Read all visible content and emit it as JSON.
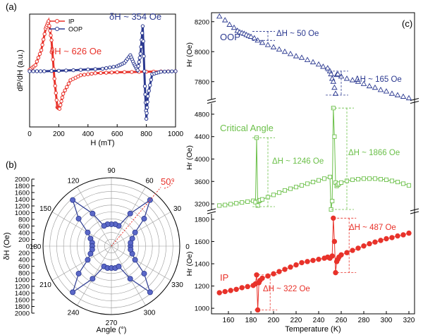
{
  "colors": {
    "ip": "#e8322a",
    "oop": "#2b3990",
    "crit": "#6cc04a",
    "axis": "#000000",
    "polar_grid": "#9a9a9a"
  },
  "chart_data": [
    {
      "panel": "(a)",
      "type": "line",
      "xlabel": "H (mT)",
      "ylabel": "dP/dH (a.u.)",
      "xlim": [
        0,
        1000
      ],
      "ylim": [
        -1,
        1
      ],
      "xticks": [
        "0",
        "200",
        "400",
        "600",
        "800",
        "1000"
      ],
      "legend": {
        "position": "top-left",
        "entries": [
          "IP",
          "OOP"
        ]
      },
      "annotations": [
        "δH ~ 626 Oe",
        "δH ~ 354 Oe"
      ],
      "series": [
        {
          "name": "IP",
          "x": [
            0,
            40,
            80,
            110,
            130,
            150,
            170,
            190,
            205,
            230,
            280,
            350,
            450,
            600,
            800,
            1000
          ],
          "y": [
            0.03,
            0.12,
            0.42,
            0.85,
            1.0,
            0.62,
            -0.15,
            -0.72,
            -0.75,
            -0.45,
            -0.18,
            -0.08,
            -0.04,
            -0.02,
            -0.01,
            0.0
          ]
        },
        {
          "name": "OOP",
          "x": [
            0,
            100,
            300,
            500,
            600,
            650,
            690,
            715,
            740,
            760,
            775,
            790,
            800,
            810,
            840,
            900,
            1000
          ],
          "y": [
            0.0,
            0.0,
            0.02,
            0.05,
            0.1,
            0.17,
            0.32,
            0.15,
            0.02,
            0.35,
            0.9,
            -0.3,
            -0.95,
            -0.5,
            -0.06,
            -0.01,
            0.0
          ]
        }
      ]
    },
    {
      "panel": "(b)",
      "type": "scatter",
      "polar": true,
      "xlabel": "Angle (°)",
      "ylabel": "δH (Oe)",
      "r_lim": [
        0,
        2000
      ],
      "r_ticks": [
        "2000",
        "1800",
        "1600",
        "1400",
        "1200",
        "1000",
        "800",
        "600",
        "400",
        "200",
        "0",
        "200",
        "400",
        "600",
        "800",
        "1000",
        "1200",
        "1400",
        "1600",
        "1800",
        "2000"
      ],
      "angle_ticks": [
        "0",
        "30",
        "60",
        "90",
        "120",
        "150",
        "180",
        "210",
        "240",
        "270",
        "300",
        "330"
      ],
      "annotation": "50°",
      "points": {
        "angle_deg": [
          10,
          20,
          30,
          40,
          50,
          60,
          70,
          80,
          90,
          100,
          110,
          120,
          130,
          140,
          150,
          160,
          170,
          180,
          190,
          200,
          210,
          220,
          230,
          240,
          250,
          260,
          270,
          280,
          290,
          300,
          310,
          320,
          330,
          340,
          350,
          0
        ],
        "r": [
          570,
          650,
          800,
          1250,
          1760,
          1100,
          630,
          650,
          640,
          650,
          630,
          1100,
          1760,
          1250,
          800,
          650,
          570,
          560,
          570,
          650,
          800,
          1250,
          1760,
          1100,
          630,
          650,
          640,
          650,
          630,
          1100,
          1760,
          1250,
          800,
          650,
          570,
          560
        ]
      }
    },
    {
      "panel": "(c)",
      "type": "scatter",
      "xlabel": "Temperature (K)",
      "xlim": [
        145,
        325
      ],
      "xticks": [
        "160",
        "180",
        "200",
        "220",
        "240",
        "260",
        "280",
        "300",
        "320"
      ],
      "subplots": [
        {
          "label": "OOP",
          "ylabel": "Hr (Oe)",
          "ylim": [
            7700,
            8260
          ],
          "yticks": [
            "7800",
            "8000",
            "8200"
          ],
          "annotations": [
            "ΔH ~ 50 Oe",
            "ΔH ~ 165 Oe"
          ],
          "x": [
            152,
            157,
            161,
            165,
            168,
            170,
            172,
            174,
            176,
            178,
            180,
            183,
            186,
            190,
            195,
            200,
            205,
            210,
            215,
            220,
            225,
            230,
            235,
            240,
            244,
            248,
            250,
            251,
            252,
            253,
            254,
            255,
            256,
            257,
            260,
            265,
            270,
            275,
            280,
            285,
            290,
            295,
            300,
            305,
            310,
            315,
            320
          ],
          "y": [
            8235,
            8210,
            8180,
            8160,
            8140,
            8130,
            8125,
            8120,
            8112,
            8105,
            8100,
            8090,
            8075,
            8060,
            8045,
            8030,
            8015,
            8000,
            7985,
            7970,
            7960,
            7945,
            7930,
            7915,
            7900,
            7890,
            7870,
            7850,
            7820,
            7800,
            7760,
            7720,
            7845,
            7850,
            7835,
            7820,
            7810,
            7800,
            7785,
            7770,
            7760,
            7745,
            7735,
            7720,
            7710,
            7700,
            7690
          ]
        },
        {
          "label": "Critical Angle",
          "ylabel": "Hr (Oe)",
          "ylim": [
            3100,
            4950
          ],
          "yticks": [
            "3200",
            "3600",
            "4000",
            "4400",
            "4800"
          ],
          "annotations": [
            "ΔH ~ 1246 Oe",
            "ΔH ~ 1866 Oe"
          ],
          "x": [
            152,
            157,
            162,
            167,
            172,
            177,
            182,
            184,
            185,
            186,
            187,
            188,
            190,
            195,
            200,
            205,
            210,
            215,
            220,
            225,
            230,
            235,
            240,
            245,
            250,
            251,
            252,
            253,
            254,
            255,
            256,
            257,
            258,
            260,
            265,
            270,
            275,
            280,
            285,
            290,
            295,
            300,
            305,
            310,
            315,
            320
          ],
          "y": [
            3170,
            3180,
            3195,
            3210,
            3225,
            3240,
            3255,
            3230,
            4380,
            3170,
            3250,
            3265,
            3280,
            3320,
            3360,
            3400,
            3440,
            3470,
            3500,
            3530,
            3560,
            3590,
            3620,
            3650,
            3680,
            3100,
            3250,
            4910,
            4400,
            3580,
            3520,
            3540,
            3560,
            3580,
            3610,
            3630,
            3640,
            3650,
            3650,
            3650,
            3640,
            3630,
            3610,
            3590,
            3560,
            3530
          ]
        },
        {
          "label": "IP",
          "ylabel": "Hr (Oe)",
          "ylim": [
            950,
            1850
          ],
          "yticks": [
            "1000",
            "1200",
            "1400",
            "1600",
            "1800"
          ],
          "annotations": [
            "ΔH ~ 322 Oe",
            "ΔH ~ 487 Oe"
          ],
          "x": [
            152,
            157,
            162,
            167,
            172,
            177,
            182,
            184,
            185,
            186,
            187,
            188,
            190,
            195,
            200,
            205,
            210,
            215,
            220,
            225,
            230,
            235,
            240,
            245,
            248,
            250,
            252,
            253,
            254,
            255,
            256,
            257,
            258,
            260,
            265,
            270,
            275,
            280,
            285,
            290,
            295,
            300,
            305,
            310,
            315,
            320
          ],
          "y": [
            1140,
            1150,
            1160,
            1170,
            1185,
            1195,
            1205,
            1220,
            1300,
            985,
            1230,
            1250,
            1270,
            1290,
            1310,
            1330,
            1350,
            1370,
            1390,
            1410,
            1420,
            1430,
            1440,
            1450,
            1460,
            1450,
            1470,
            1810,
            1600,
            1320,
            1420,
            1440,
            1460,
            1480,
            1500,
            1520,
            1540,
            1560,
            1580,
            1595,
            1610,
            1625,
            1635,
            1650,
            1660,
            1675
          ]
        }
      ]
    }
  ],
  "panel_labels": [
    "(a)",
    "(b)",
    "(c)"
  ]
}
